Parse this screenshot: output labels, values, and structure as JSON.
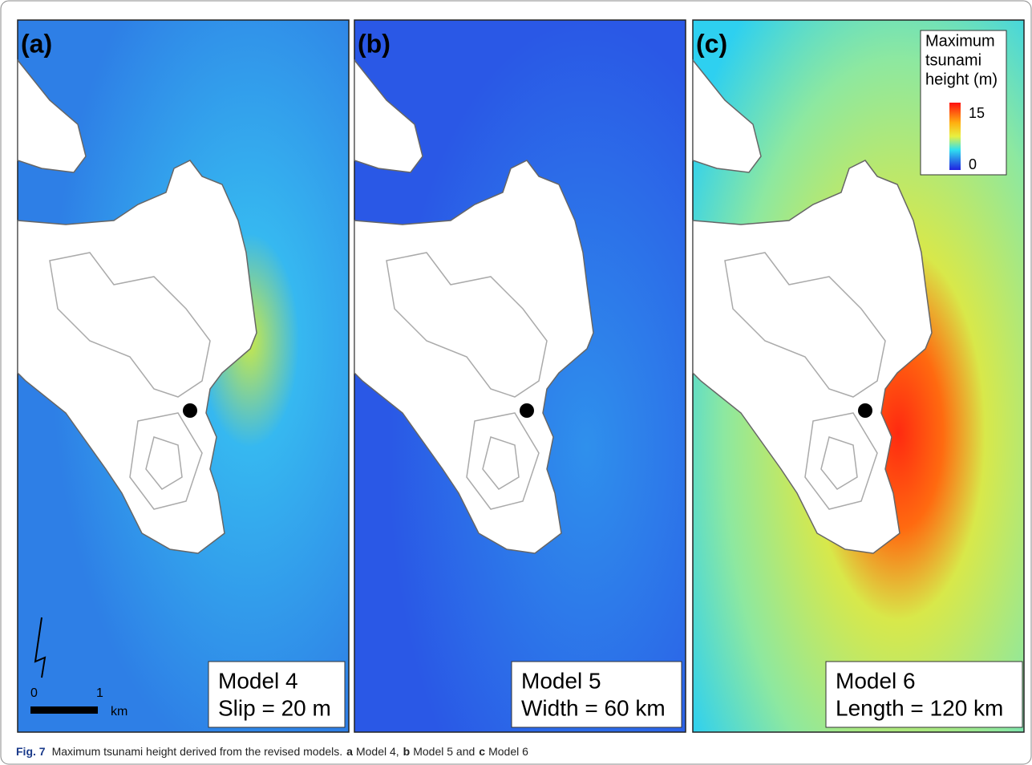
{
  "panels": [
    {
      "label": "(a)",
      "model": "Model 4",
      "parameter": "Slip = 20 m"
    },
    {
      "label": "(b)",
      "model": "Model 5",
      "parameter": "Width = 60 km"
    },
    {
      "label": "(c)",
      "model": "Model 6",
      "parameter": "Length = 120 km"
    }
  ],
  "legend": {
    "title_lines": [
      "Maximum",
      "tsunami",
      "height (m)"
    ],
    "ticks": [
      15,
      0
    ]
  },
  "scale_bar": {
    "labels": [
      "0",
      "1",
      "km"
    ]
  },
  "caption": {
    "figure": "Fig. 7",
    "text": "Maximum tsunami height derived from the revised models.",
    "parts": [
      {
        "bold": "a",
        "text": "Model 4,"
      },
      {
        "bold": "b",
        "text": "Model 5 and"
      },
      {
        "bold": "c",
        "text": "Model 6"
      }
    ]
  }
}
